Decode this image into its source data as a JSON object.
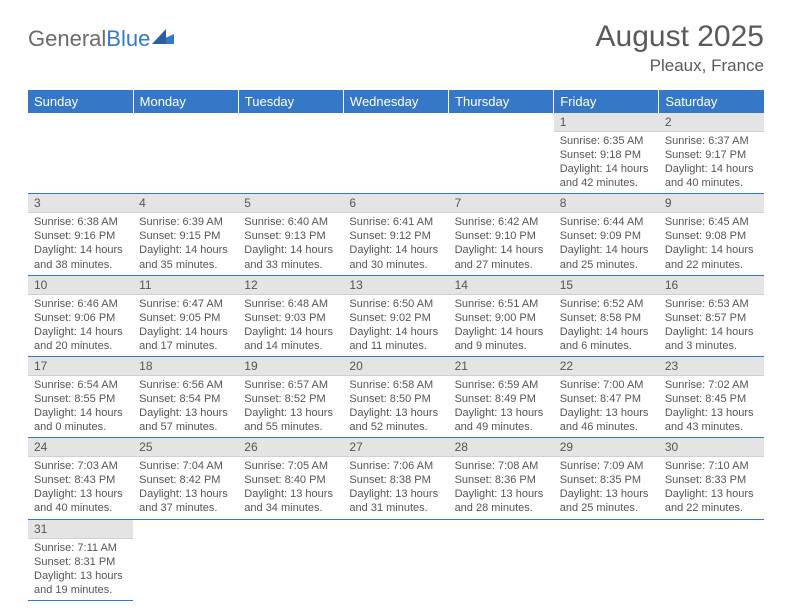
{
  "logo": {
    "part1": "General",
    "part2": "Blue"
  },
  "title": "August 2025",
  "location": "Pleaux, France",
  "colors": {
    "header_bg": "#3578c8",
    "header_text": "#ffffff",
    "daynum_bg": "#e4e4e4",
    "cell_border": "#3578c8",
    "text": "#555555",
    "background": "#ffffff"
  },
  "weekdays": [
    "Sunday",
    "Monday",
    "Tuesday",
    "Wednesday",
    "Thursday",
    "Friday",
    "Saturday"
  ],
  "weeks": [
    [
      null,
      null,
      null,
      null,
      null,
      {
        "n": "1",
        "sr": "Sunrise: 6:35 AM",
        "ss": "Sunset: 9:18 PM",
        "d1": "Daylight: 14 hours",
        "d2": "and 42 minutes."
      },
      {
        "n": "2",
        "sr": "Sunrise: 6:37 AM",
        "ss": "Sunset: 9:17 PM",
        "d1": "Daylight: 14 hours",
        "d2": "and 40 minutes."
      }
    ],
    [
      {
        "n": "3",
        "sr": "Sunrise: 6:38 AM",
        "ss": "Sunset: 9:16 PM",
        "d1": "Daylight: 14 hours",
        "d2": "and 38 minutes."
      },
      {
        "n": "4",
        "sr": "Sunrise: 6:39 AM",
        "ss": "Sunset: 9:15 PM",
        "d1": "Daylight: 14 hours",
        "d2": "and 35 minutes."
      },
      {
        "n": "5",
        "sr": "Sunrise: 6:40 AM",
        "ss": "Sunset: 9:13 PM",
        "d1": "Daylight: 14 hours",
        "d2": "and 33 minutes."
      },
      {
        "n": "6",
        "sr": "Sunrise: 6:41 AM",
        "ss": "Sunset: 9:12 PM",
        "d1": "Daylight: 14 hours",
        "d2": "and 30 minutes."
      },
      {
        "n": "7",
        "sr": "Sunrise: 6:42 AM",
        "ss": "Sunset: 9:10 PM",
        "d1": "Daylight: 14 hours",
        "d2": "and 27 minutes."
      },
      {
        "n": "8",
        "sr": "Sunrise: 6:44 AM",
        "ss": "Sunset: 9:09 PM",
        "d1": "Daylight: 14 hours",
        "d2": "and 25 minutes."
      },
      {
        "n": "9",
        "sr": "Sunrise: 6:45 AM",
        "ss": "Sunset: 9:08 PM",
        "d1": "Daylight: 14 hours",
        "d2": "and 22 minutes."
      }
    ],
    [
      {
        "n": "10",
        "sr": "Sunrise: 6:46 AM",
        "ss": "Sunset: 9:06 PM",
        "d1": "Daylight: 14 hours",
        "d2": "and 20 minutes."
      },
      {
        "n": "11",
        "sr": "Sunrise: 6:47 AM",
        "ss": "Sunset: 9:05 PM",
        "d1": "Daylight: 14 hours",
        "d2": "and 17 minutes."
      },
      {
        "n": "12",
        "sr": "Sunrise: 6:48 AM",
        "ss": "Sunset: 9:03 PM",
        "d1": "Daylight: 14 hours",
        "d2": "and 14 minutes."
      },
      {
        "n": "13",
        "sr": "Sunrise: 6:50 AM",
        "ss": "Sunset: 9:02 PM",
        "d1": "Daylight: 14 hours",
        "d2": "and 11 minutes."
      },
      {
        "n": "14",
        "sr": "Sunrise: 6:51 AM",
        "ss": "Sunset: 9:00 PM",
        "d1": "Daylight: 14 hours",
        "d2": "and 9 minutes."
      },
      {
        "n": "15",
        "sr": "Sunrise: 6:52 AM",
        "ss": "Sunset: 8:58 PM",
        "d1": "Daylight: 14 hours",
        "d2": "and 6 minutes."
      },
      {
        "n": "16",
        "sr": "Sunrise: 6:53 AM",
        "ss": "Sunset: 8:57 PM",
        "d1": "Daylight: 14 hours",
        "d2": "and 3 minutes."
      }
    ],
    [
      {
        "n": "17",
        "sr": "Sunrise: 6:54 AM",
        "ss": "Sunset: 8:55 PM",
        "d1": "Daylight: 14 hours",
        "d2": "and 0 minutes."
      },
      {
        "n": "18",
        "sr": "Sunrise: 6:56 AM",
        "ss": "Sunset: 8:54 PM",
        "d1": "Daylight: 13 hours",
        "d2": "and 57 minutes."
      },
      {
        "n": "19",
        "sr": "Sunrise: 6:57 AM",
        "ss": "Sunset: 8:52 PM",
        "d1": "Daylight: 13 hours",
        "d2": "and 55 minutes."
      },
      {
        "n": "20",
        "sr": "Sunrise: 6:58 AM",
        "ss": "Sunset: 8:50 PM",
        "d1": "Daylight: 13 hours",
        "d2": "and 52 minutes."
      },
      {
        "n": "21",
        "sr": "Sunrise: 6:59 AM",
        "ss": "Sunset: 8:49 PM",
        "d1": "Daylight: 13 hours",
        "d2": "and 49 minutes."
      },
      {
        "n": "22",
        "sr": "Sunrise: 7:00 AM",
        "ss": "Sunset: 8:47 PM",
        "d1": "Daylight: 13 hours",
        "d2": "and 46 minutes."
      },
      {
        "n": "23",
        "sr": "Sunrise: 7:02 AM",
        "ss": "Sunset: 8:45 PM",
        "d1": "Daylight: 13 hours",
        "d2": "and 43 minutes."
      }
    ],
    [
      {
        "n": "24",
        "sr": "Sunrise: 7:03 AM",
        "ss": "Sunset: 8:43 PM",
        "d1": "Daylight: 13 hours",
        "d2": "and 40 minutes."
      },
      {
        "n": "25",
        "sr": "Sunrise: 7:04 AM",
        "ss": "Sunset: 8:42 PM",
        "d1": "Daylight: 13 hours",
        "d2": "and 37 minutes."
      },
      {
        "n": "26",
        "sr": "Sunrise: 7:05 AM",
        "ss": "Sunset: 8:40 PM",
        "d1": "Daylight: 13 hours",
        "d2": "and 34 minutes."
      },
      {
        "n": "27",
        "sr": "Sunrise: 7:06 AM",
        "ss": "Sunset: 8:38 PM",
        "d1": "Daylight: 13 hours",
        "d2": "and 31 minutes."
      },
      {
        "n": "28",
        "sr": "Sunrise: 7:08 AM",
        "ss": "Sunset: 8:36 PM",
        "d1": "Daylight: 13 hours",
        "d2": "and 28 minutes."
      },
      {
        "n": "29",
        "sr": "Sunrise: 7:09 AM",
        "ss": "Sunset: 8:35 PM",
        "d1": "Daylight: 13 hours",
        "d2": "and 25 minutes."
      },
      {
        "n": "30",
        "sr": "Sunrise: 7:10 AM",
        "ss": "Sunset: 8:33 PM",
        "d1": "Daylight: 13 hours",
        "d2": "and 22 minutes."
      }
    ],
    [
      {
        "n": "31",
        "sr": "Sunrise: 7:11 AM",
        "ss": "Sunset: 8:31 PM",
        "d1": "Daylight: 13 hours",
        "d2": "and 19 minutes."
      },
      null,
      null,
      null,
      null,
      null,
      null
    ]
  ]
}
